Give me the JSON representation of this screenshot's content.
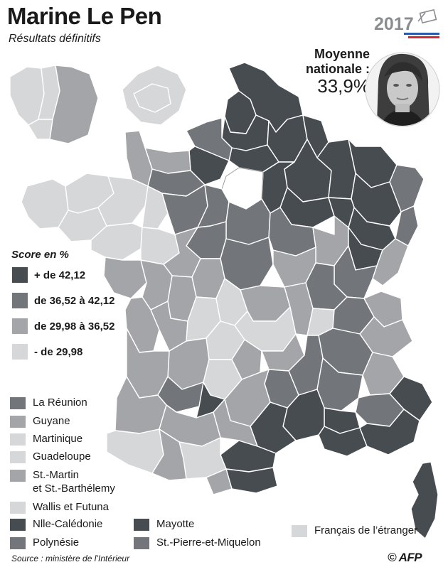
{
  "header": {
    "title": "Marine Le Pen",
    "subtitle": "Résultats définitifs",
    "year": "2017"
  },
  "average": {
    "label_line1": "Moyenne",
    "label_line2": "nationale :",
    "value": "33,9%"
  },
  "legend": {
    "title": "Score en %",
    "classes": [
      {
        "label": "+ de 42,12",
        "color": "#474c50"
      },
      {
        "label": "de 36,52 à 42,12",
        "color": "#727579"
      },
      {
        "label": "de 29,98 à 36,52",
        "color": "#a3a5a8"
      },
      {
        "label": "- de 29,98",
        "color": "#d6d7d8"
      }
    ]
  },
  "territories": [
    {
      "label": "La Réunion",
      "color": "#727579"
    },
    {
      "label": "Guyane",
      "color": "#a3a5a8"
    },
    {
      "label": "Martinique",
      "color": "#d6d7d8"
    },
    {
      "label": "Guadeloupe",
      "color": "#d6d7d8"
    },
    {
      "label": "St.-Martin",
      "label2": "et St.-Barthélemy",
      "color": "#a3a5a8"
    },
    {
      "label": "Wallis et Futuna",
      "color": "#d6d7d8"
    },
    {
      "label": "Nlle-Calédonie",
      "color": "#474c50"
    },
    {
      "label": "Mayotte",
      "color": "#474c50"
    },
    {
      "label": "Polynésie",
      "color": "#727579"
    },
    {
      "label": "St.-Pierre-et-Miquelon",
      "color": "#727579"
    },
    {
      "label": "Français de l’étranger",
      "color": "#d6d7d8"
    }
  ],
  "colors": {
    "tricolor_blue": "#2a5aa8",
    "tricolor_red": "#d4253a",
    "border": "#ffffff"
  },
  "footer": {
    "source": "Source : ministère de l’Intérieur",
    "credit": "© AFP"
  }
}
